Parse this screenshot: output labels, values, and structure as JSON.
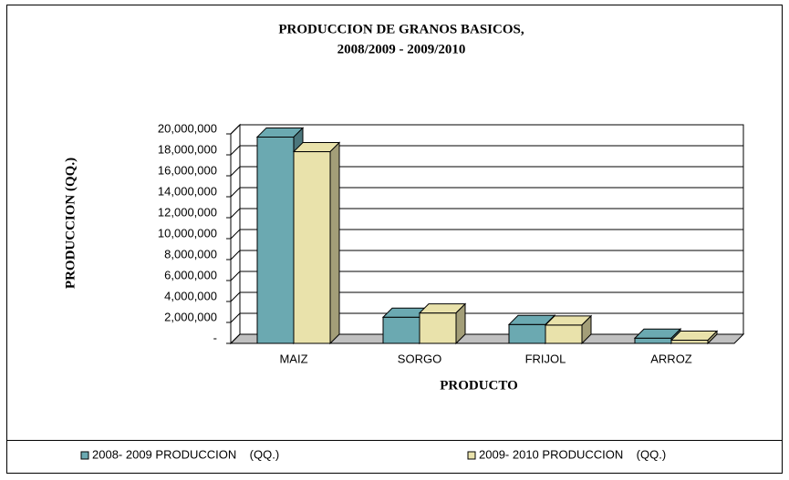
{
  "chart_data": {
    "type": "bar3d",
    "title": [
      "PRODUCCION DE GRANOS BASICOS,",
      "2008/2009 - 2009/2010"
    ],
    "y_label": "PRODUCCION (QQ.)",
    "x_label": "PRODUCTO",
    "categories": [
      "MAIZ",
      "SORGO",
      "FRIJOL",
      "ARROZ"
    ],
    "series": [
      {
        "name": "2008- 2009 PRODUCCION    (QQ.)",
        "color": "#6ba9b1",
        "values": [
          19700000,
          2500000,
          1800000,
          500000
        ]
      },
      {
        "name": "2009- 2010 PRODUCCION    (QQ.)",
        "color": "#e9e2ab",
        "values": [
          18300000,
          2900000,
          1750000,
          300000
        ]
      }
    ],
    "ylim": [
      0,
      20000000
    ],
    "yticks": [
      {
        "value": 0,
        "label": "-"
      },
      {
        "value": 2000000,
        "label": "2,000,000"
      },
      {
        "value": 4000000,
        "label": "4,000,000"
      },
      {
        "value": 6000000,
        "label": "6,000,000"
      },
      {
        "value": 8000000,
        "label": "8,000,000"
      },
      {
        "value": 10000000,
        "label": "10,000,000"
      },
      {
        "value": 12000000,
        "label": "12,000,000"
      },
      {
        "value": 14000000,
        "label": "14,000,000"
      },
      {
        "value": 16000000,
        "label": "16,000,000"
      },
      {
        "value": 18000000,
        "label": "18,000,000"
      },
      {
        "value": 20000000,
        "label": "20,000,000"
      }
    ],
    "grid": true,
    "legend": "bottom"
  }
}
